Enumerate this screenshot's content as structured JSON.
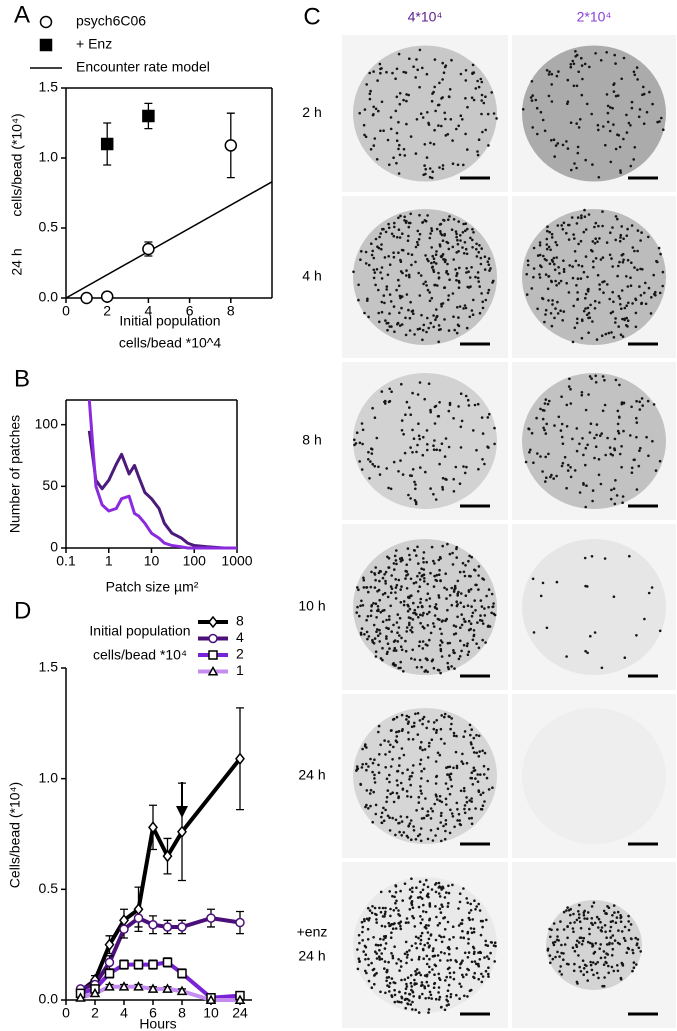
{
  "chart_data": [
    {
      "label": "A",
      "type": "scatter",
      "box": true,
      "xlim": [
        0,
        10
      ],
      "xticks": [
        0,
        2,
        4,
        6,
        8
      ],
      "ylim": [
        0,
        1.5
      ],
      "yticks": [
        {
          "value": 0,
          "label": "0.0"
        },
        {
          "value": 0.5,
          "label": "0.5"
        },
        {
          "value": 1,
          "label": "1.0"
        },
        {
          "value": 1.5,
          "label": "1.5"
        }
      ],
      "xlabel": [
        "Initial population",
        "cells/bead *10^4"
      ],
      "ylabel": "cells/bead (*10⁴)",
      "row_label": "24 h",
      "series": [
        {
          "name": "psych6C06",
          "style": "points",
          "marker": "circle-open",
          "color": "#000000",
          "x": [
            1,
            2,
            4,
            8
          ],
          "values": [
            0,
            0.01,
            0.35,
            1.09
          ],
          "errors": [
            0,
            0,
            0.05,
            0.23
          ]
        },
        {
          "name": "+ Enz",
          "style": "points",
          "marker": "square",
          "color": "#000000",
          "x": [
            2,
            4
          ],
          "values": [
            1.1,
            1.3
          ],
          "errors": [
            0.15,
            0.09
          ]
        },
        {
          "name": "Encounter rate model",
          "style": "line",
          "color": "#000000",
          "x": [
            0,
            10
          ],
          "values": [
            0,
            0.83
          ]
        }
      ]
    },
    {
      "label": "B",
      "type": "line",
      "box": true,
      "xscale": "log",
      "xlim": [
        0.1,
        1000
      ],
      "xticks": [
        0.1,
        1,
        10,
        100,
        1000
      ],
      "ylim": [
        0,
        120
      ],
      "yticks": [
        0,
        50,
        100
      ],
      "xlabel": [
        "Patch size µm²"
      ],
      "ylabel": "Number of patches",
      "x": [
        0.35,
        0.5,
        0.7,
        1,
        1.5,
        2,
        3,
        4,
        5,
        7,
        10,
        15,
        20,
        30,
        50,
        70,
        100,
        200,
        500,
        1000
      ],
      "series": [
        {
          "color": "#4b1a7a",
          "values": [
            95,
            55,
            48,
            55,
            68,
            76,
            60,
            67,
            58,
            45,
            40,
            32,
            20,
            12,
            8,
            4,
            2,
            1,
            0,
            0
          ]
        },
        {
          "color": "#8b2be0",
          "values": [
            120,
            50,
            35,
            30,
            32,
            40,
            42,
            28,
            26,
            20,
            12,
            8,
            4,
            2,
            1,
            0,
            0,
            0,
            0,
            0
          ]
        }
      ]
    },
    {
      "label": "D",
      "type": "line",
      "xscale": "broken",
      "xlim": [
        0,
        24
      ],
      "xticks": [
        0,
        2,
        4,
        6,
        8,
        10,
        24
      ],
      "ylim": [
        0,
        1.5
      ],
      "yticks": [
        {
          "value": 0,
          "label": "0.0"
        },
        {
          "value": 0.5,
          "label": "0.5"
        },
        {
          "value": 1,
          "label": "1.0"
        },
        {
          "value": 1.5,
          "label": "1.5"
        }
      ],
      "xlabel": [
        "Hours"
      ],
      "ylabel": "Cells/bead (*10⁴)",
      "legend_title": [
        "Initial population",
        "cells/bead *10⁴"
      ],
      "series": [
        {
          "name": "8",
          "marker": "diamond-open",
          "color": "#000000",
          "x": [
            1,
            2,
            3,
            4,
            5,
            6,
            7,
            8,
            24
          ],
          "values": [
            0.04,
            0.09,
            0.25,
            0.36,
            0.41,
            0.78,
            0.65,
            0.76,
            1.09
          ],
          "errors": [
            0.01,
            0.02,
            0.04,
            0.05,
            0.1,
            0.1,
            0.08,
            0.22,
            0.23
          ]
        },
        {
          "name": "4",
          "marker": "circle-open",
          "color": "#4b0f7a",
          "x": [
            1,
            2,
            3,
            4,
            5,
            6,
            7,
            8,
            10,
            24
          ],
          "values": [
            0.05,
            0.07,
            0.17,
            0.32,
            0.37,
            0.34,
            0.33,
            0.33,
            0.37,
            0.35
          ],
          "errors": [
            0.01,
            0.01,
            0.03,
            0.04,
            0.04,
            0.04,
            0.03,
            0.03,
            0.04,
            0.05
          ]
        },
        {
          "name": "2",
          "marker": "square-open",
          "color": "#7a22d6",
          "x": [
            1,
            2,
            3,
            4,
            5,
            6,
            7,
            8,
            10,
            24
          ],
          "values": [
            0.03,
            0.05,
            0.12,
            0.16,
            0.16,
            0.16,
            0.17,
            0.12,
            0.01,
            0.02
          ],
          "errors": [
            0.01,
            0.01,
            0.02,
            0.02,
            0.02,
            0.02,
            0.02,
            0.02,
            0.01,
            0.01
          ]
        },
        {
          "name": "1",
          "marker": "triangle-open",
          "color": "#c58cf0",
          "x": [
            1,
            2,
            3,
            4,
            5,
            6,
            7,
            8,
            10,
            24
          ],
          "values": [
            0.01,
            0.03,
            0.06,
            0.06,
            0.06,
            0.05,
            0.05,
            0.04,
            0,
            0
          ],
          "errors": [
            0.01,
            0.01,
            0.01,
            0.01,
            0.01,
            0.01,
            0.01,
            0.01,
            0,
            0
          ]
        }
      ]
    }
  ],
  "panel_c": {
    "label": "C",
    "columns": [
      {
        "text": "4*10⁴",
        "color": "#5b1f8e"
      },
      {
        "text": "2*10⁴",
        "color": "#8a3fd8"
      }
    ],
    "rows": [
      [
        "2 h"
      ],
      [
        "4 h"
      ],
      [
        "8 h"
      ],
      [
        "10 h"
      ],
      [
        "24 h"
      ],
      [
        "+enz",
        "24 h"
      ]
    ]
  }
}
